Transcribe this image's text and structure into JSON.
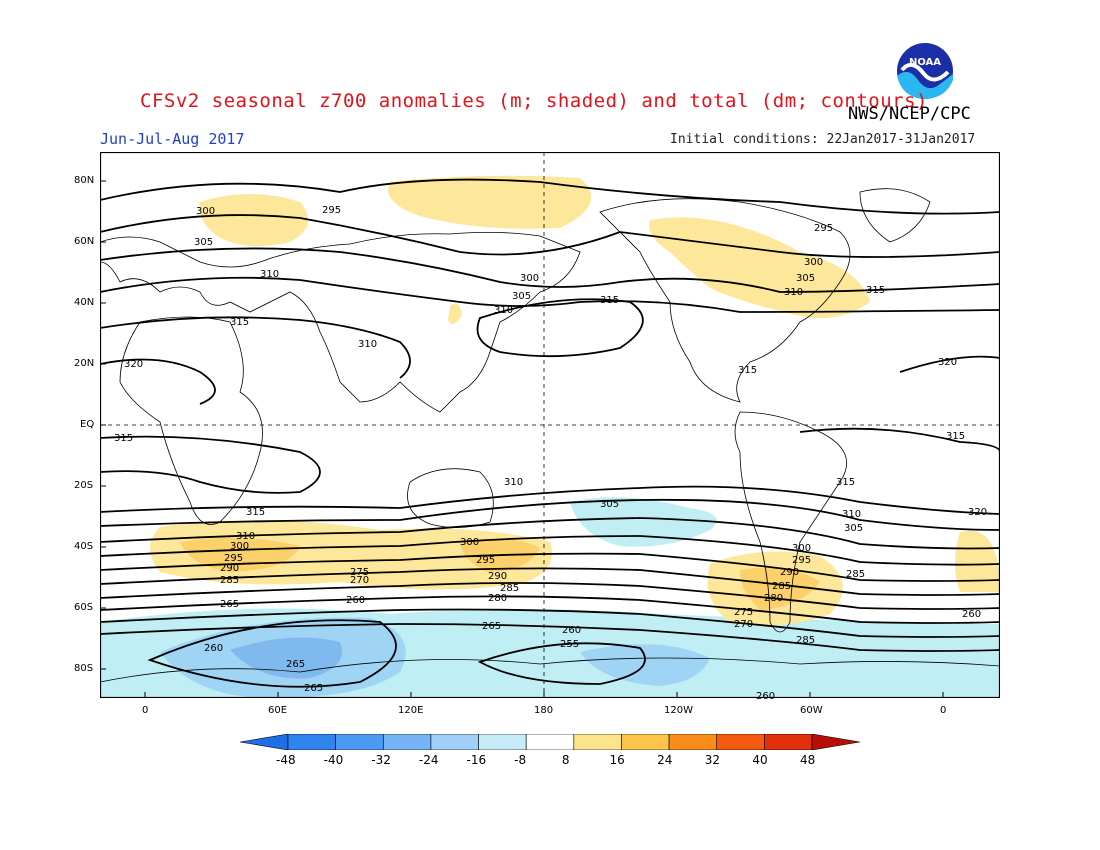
{
  "header": {
    "title": "CFSv2 seasonal z700 anomalies (m; shaded) and total (dm; contours)",
    "agency": "NWS/NCEP/CPC",
    "season": "Jun-Jul-Aug 2017",
    "initial_conditions": "Initial conditions: 22Jan2017-31Jan2017",
    "logo_text": "NOAA"
  },
  "map": {
    "lat_labels": [
      "80N",
      "60N",
      "40N",
      "20N",
      "EQ",
      "20S",
      "40S",
      "60S",
      "80S"
    ],
    "lon_labels": [
      "0",
      "60E",
      "120E",
      "180",
      "120W",
      "60W",
      "0"
    ],
    "contour_labels": [
      "295",
      "300",
      "305",
      "310",
      "315",
      "320",
      "300",
      "305",
      "310",
      "310",
      "315",
      "295",
      "300",
      "305",
      "310",
      "315",
      "315",
      "320",
      "310",
      "315",
      "315",
      "320",
      "315",
      "310",
      "315",
      "305",
      "310",
      "305",
      "300",
      "295",
      "290",
      "285",
      "300",
      "295",
      "290",
      "285",
      "280",
      "275",
      "270",
      "265",
      "300",
      "295",
      "290",
      "285",
      "280",
      "275",
      "270",
      "265",
      "260",
      "285",
      "265",
      "260",
      "260",
      "255",
      "265",
      "260",
      "285",
      "260"
    ]
  },
  "colorbar": {
    "labels": [
      "-48",
      "-40",
      "-32",
      "-24",
      "-16",
      "-8",
      "8",
      "16",
      "24",
      "32",
      "40",
      "48"
    ],
    "colors": [
      "#1e6ee6",
      "#2f84ee",
      "#4d9af2",
      "#77b4f5",
      "#a0d0f8",
      "#c6ecf8",
      "#ffffff",
      "#fde38a",
      "#fcc448",
      "#fa8c1c",
      "#f45a10",
      "#e0300c",
      "#b80e0a"
    ]
  },
  "shading_colors": {
    "neg_light": "#bfeef5",
    "neg_mid": "#9fd4f5",
    "neg_strong": "#7fb9ee",
    "pos_light": "#fde79a",
    "pos_mid": "#fcd06a",
    "pos_strong": "#f9b245"
  }
}
